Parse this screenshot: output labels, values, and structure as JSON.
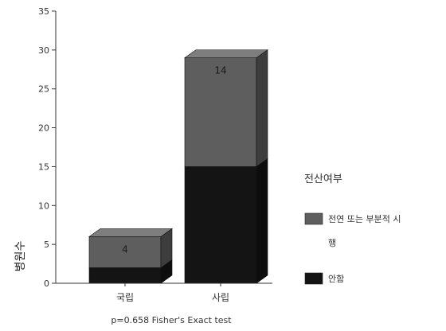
{
  "chart_data": {
    "type": "bar",
    "stacked": true,
    "three_d": true,
    "categories": [
      "국립",
      "사립"
    ],
    "series": [
      {
        "name": "안함",
        "values": [
          2,
          15
        ],
        "color": "#141414"
      },
      {
        "name": "전연 또는 부분적 시행",
        "values": [
          4,
          14
        ],
        "color": "#5e5e5e"
      }
    ],
    "data_labels": [
      {
        "category": "국립",
        "text": "4"
      },
      {
        "category": "사립",
        "text": "14"
      }
    ],
    "ylabel": "병원수",
    "xlabel": "",
    "ylim": [
      0,
      35
    ],
    "yticks": [
      0,
      5,
      10,
      15,
      20,
      25,
      30,
      35
    ],
    "grid": false,
    "legend": {
      "title": "전산여부",
      "position": "right",
      "entries": [
        {
          "label_line1": "전연 또는 부분적 시",
          "label_line2": "행"
        },
        {
          "label_line1": "안함",
          "label_line2": ""
        }
      ]
    },
    "note": "p=0.658 Fisher's Exact test"
  }
}
